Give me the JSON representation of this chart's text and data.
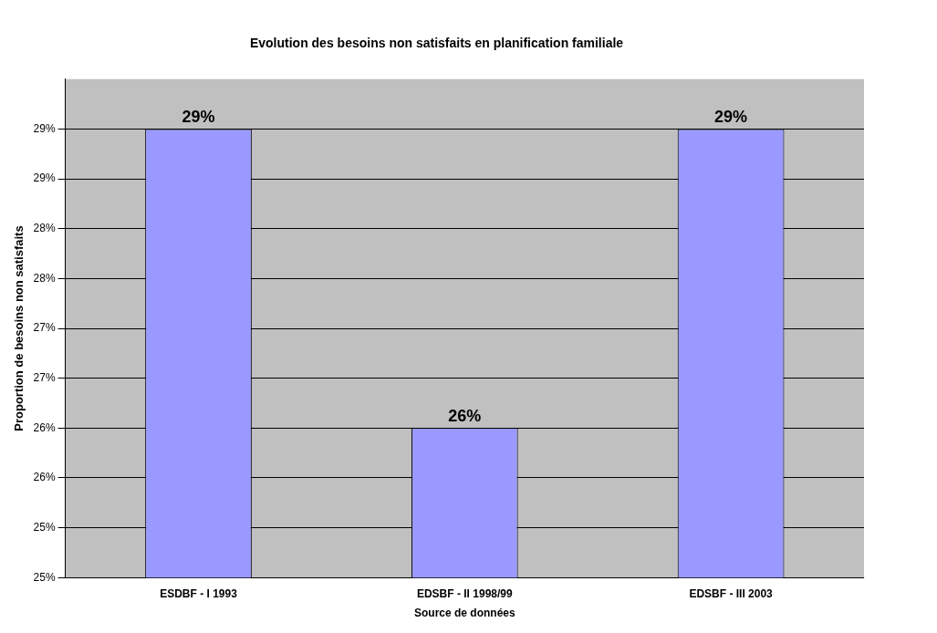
{
  "chart_data": {
    "type": "bar",
    "title": "Evolution des besoins non satisfaits en planification familiale",
    "xlabel": "Source de données",
    "ylabel": "Proportion de besoins non satisfaits",
    "categories": [
      "ESDBF - I 1993",
      "EDSBF - II 1998/99",
      "EDSBF - III 2003"
    ],
    "values": [
      29,
      26,
      29
    ],
    "color": "#9999ff",
    "value_labels": [
      "29%",
      "26%",
      "29%"
    ],
    "ylim": [
      24.5,
      29.5
    ],
    "yticks": [
      {
        "value": 24.5,
        "label": "25%"
      },
      {
        "value": 25,
        "label": "25%"
      },
      {
        "value": 25.5,
        "label": "26%"
      },
      {
        "value": 26,
        "label": "26%"
      },
      {
        "value": 26.5,
        "label": "27%"
      },
      {
        "value": 27,
        "label": "27%"
      },
      {
        "value": 27.5,
        "label": "28%"
      },
      {
        "value": 28,
        "label": "28%"
      },
      {
        "value": 28.5,
        "label": "29%"
      },
      {
        "value": 29,
        "label": "29%"
      }
    ],
    "grid": "y",
    "legend": false
  }
}
